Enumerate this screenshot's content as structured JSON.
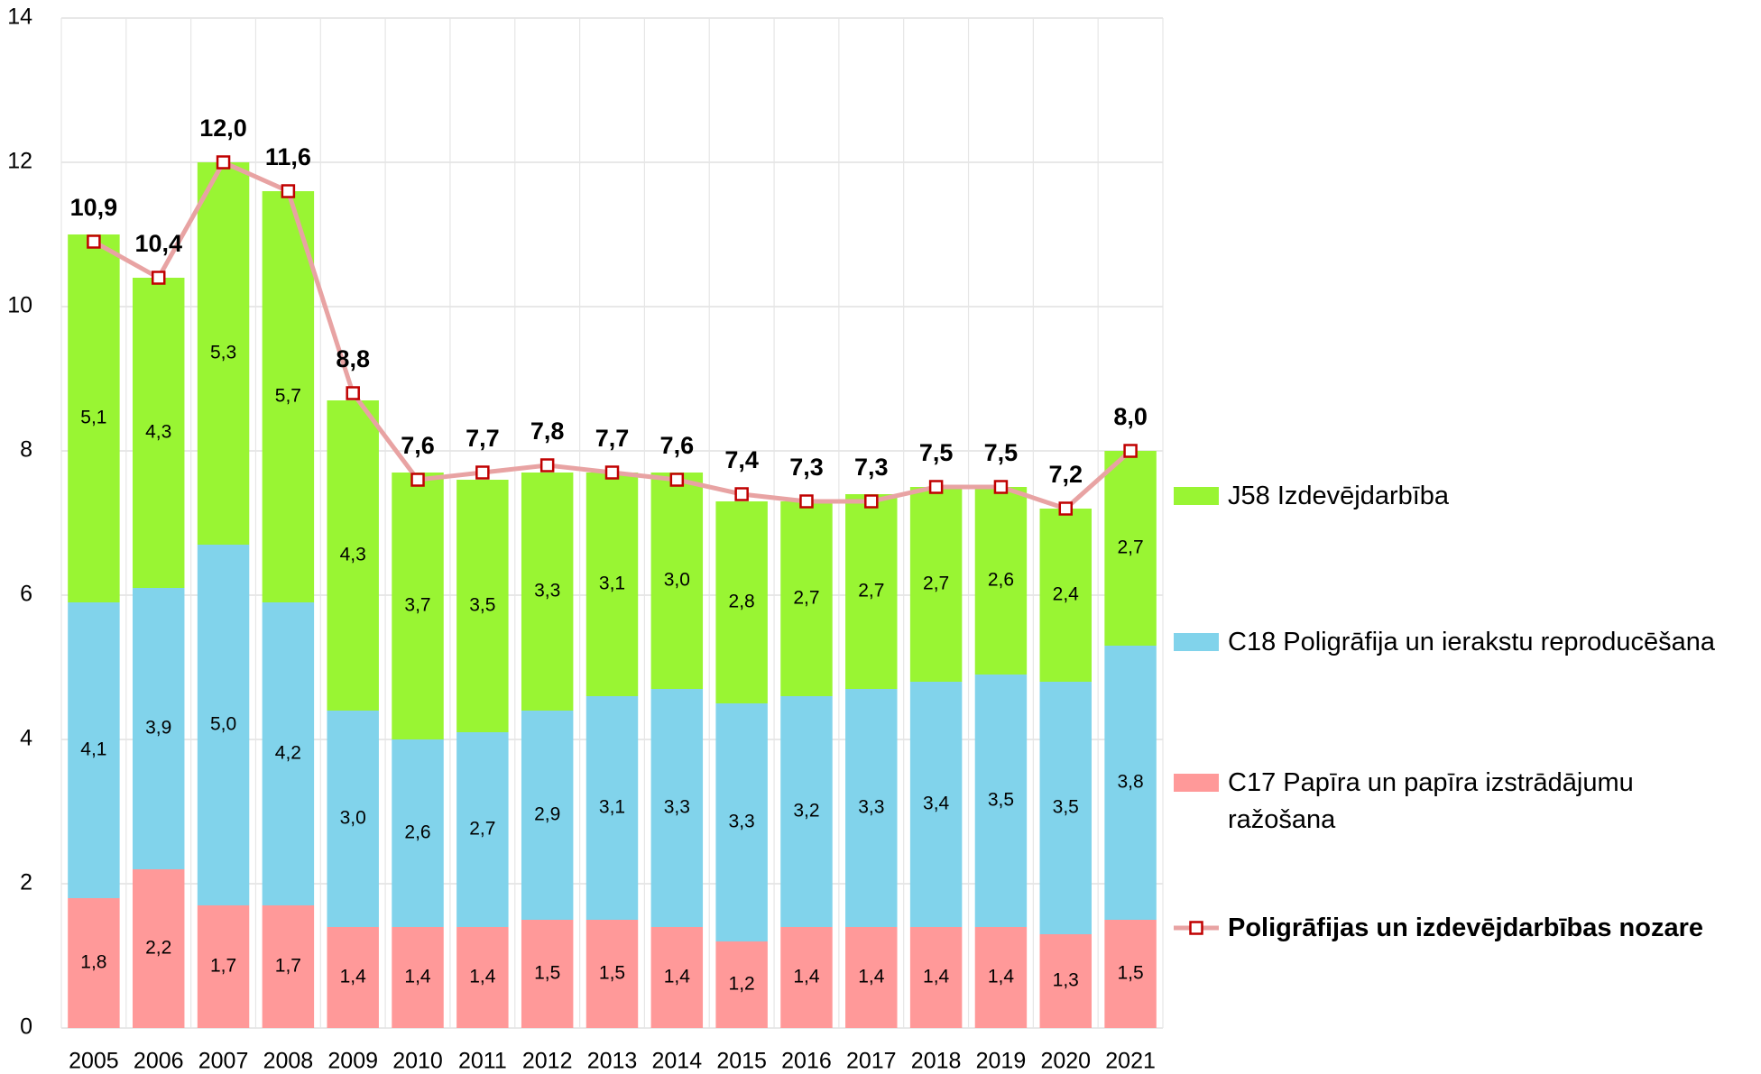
{
  "chart_data": {
    "type": "bar",
    "categories": [
      "2005",
      "2006",
      "2007",
      "2008",
      "2009",
      "2010",
      "2011",
      "2012",
      "2013",
      "2014",
      "2015",
      "2016",
      "2017",
      "2018",
      "2019",
      "2020",
      "2021"
    ],
    "ylim": [
      0,
      14
    ],
    "yticks": [
      0,
      2,
      4,
      6,
      8,
      10,
      12,
      14
    ],
    "grid": true,
    "stacked": true,
    "legend": "right",
    "series": [
      {
        "name": "C17 Papīra un papīra izstrādājumu ražošana",
        "type": "bar",
        "color": "#ff9999",
        "values": [
          1.8,
          2.2,
          1.7,
          1.7,
          1.4,
          1.4,
          1.4,
          1.5,
          1.5,
          1.4,
          1.2,
          1.4,
          1.4,
          1.4,
          1.4,
          1.3,
          1.5
        ],
        "value_labels": [
          "1,8",
          "2,2",
          "1,7",
          "1,7",
          "1,4",
          "1,4",
          "1,4",
          "1,5",
          "1,5",
          "1,4",
          "1,2",
          "1,4",
          "1,4",
          "1,4",
          "1,4",
          "1,3",
          "1,5"
        ]
      },
      {
        "name": "C18 Poligrāfija un ierakstu reproducēšana",
        "type": "bar",
        "color": "#81d3eb",
        "values": [
          4.1,
          3.9,
          5.0,
          4.2,
          3.0,
          2.6,
          2.7,
          2.9,
          3.1,
          3.3,
          3.3,
          3.2,
          3.3,
          3.4,
          3.5,
          3.5,
          3.8
        ],
        "value_labels": [
          "4,1",
          "3,9",
          "5,0",
          "4,2",
          "3,0",
          "2,6",
          "2,7",
          "2,9",
          "3,1",
          "3,3",
          "3,3",
          "3,2",
          "3,3",
          "3,4",
          "3,5",
          "3,5",
          "3,8"
        ]
      },
      {
        "name": "J58 Izdevējdarbība",
        "type": "bar",
        "color": "#99f533",
        "values": [
          5.1,
          4.3,
          5.3,
          5.7,
          4.3,
          3.7,
          3.5,
          3.3,
          3.1,
          3.0,
          2.8,
          2.7,
          2.7,
          2.7,
          2.6,
          2.4,
          2.7
        ],
        "value_labels": [
          "5,1",
          "4,3",
          "5,3",
          "5,7",
          "4,3",
          "3,7",
          "3,5",
          "3,3",
          "3,1",
          "3,0",
          "2,8",
          "2,7",
          "2,7",
          "2,7",
          "2,6",
          "2,4",
          "2,7"
        ]
      },
      {
        "name": "Poligrāfijas un izdevējdarbības nozare",
        "type": "line",
        "color": "#e8a3a3",
        "marker_color": "#c00000",
        "values": [
          10.9,
          10.4,
          12.0,
          11.6,
          8.8,
          7.6,
          7.7,
          7.8,
          7.7,
          7.6,
          7.4,
          7.3,
          7.3,
          7.5,
          7.5,
          7.2,
          8.0
        ],
        "value_labels": [
          "10,9",
          "10,4",
          "12,0",
          "11,6",
          "8,8",
          "7,6",
          "7,7",
          "7,8",
          "7,7",
          "7,6",
          "7,4",
          "7,3",
          "7,3",
          "7,5",
          "7,5",
          "7,2",
          "8,0"
        ]
      }
    ]
  }
}
